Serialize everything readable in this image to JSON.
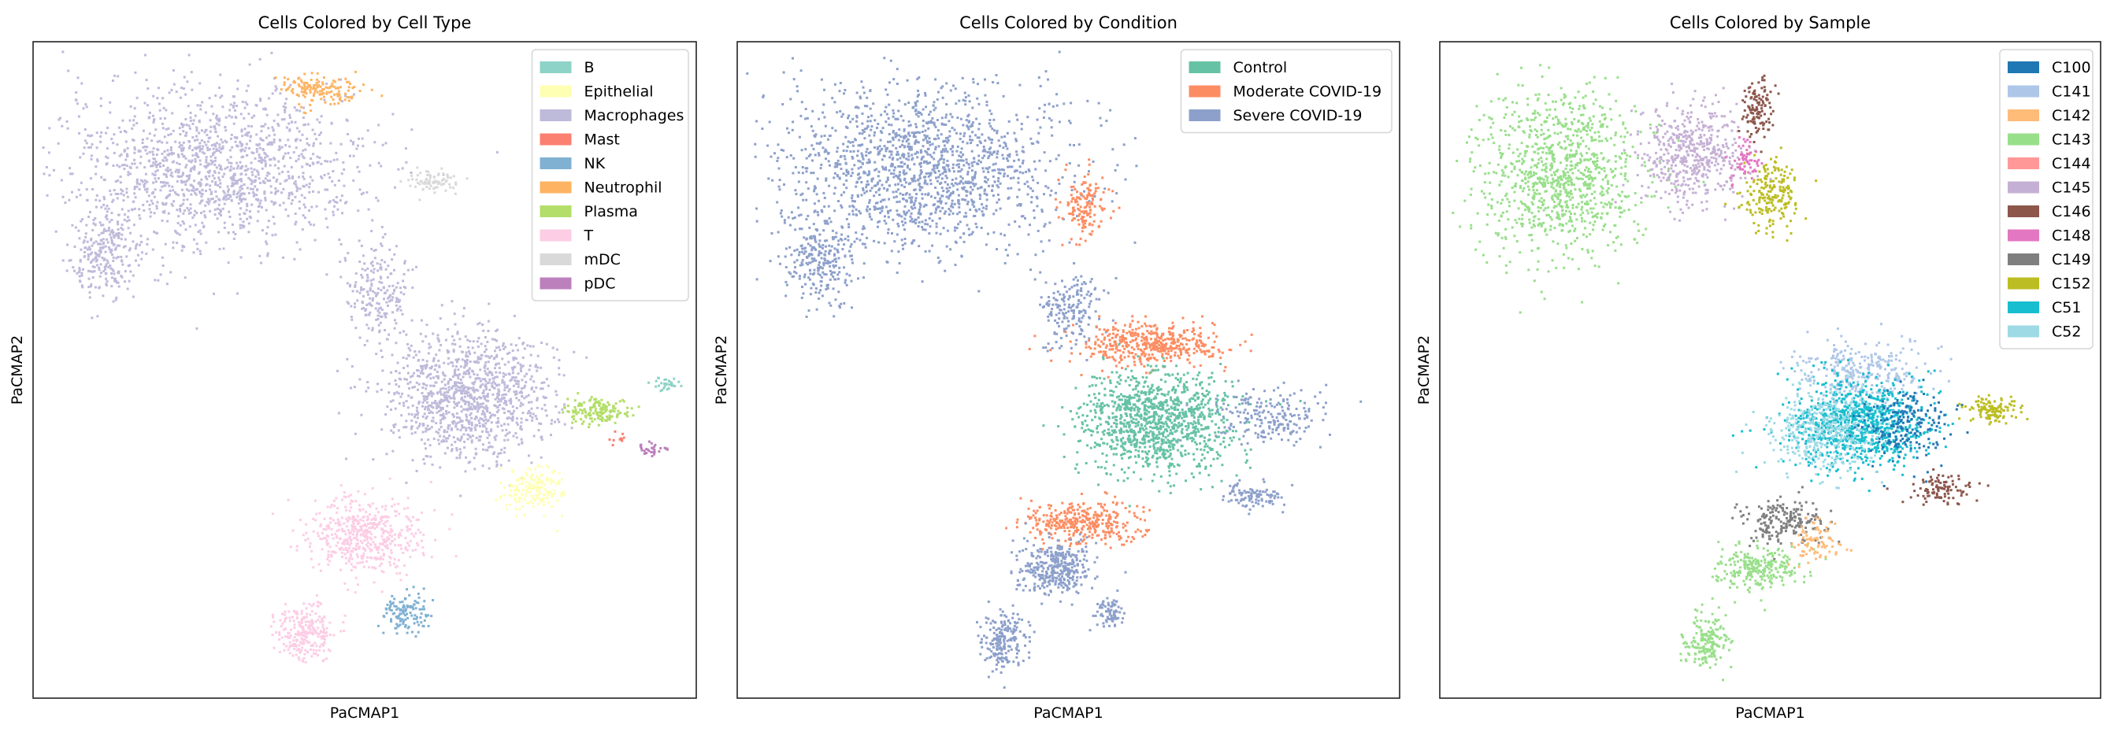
{
  "chart_data": [
    {
      "type": "scatter",
      "title": "Cells Colored by Cell Type",
      "xlabel": "PaCMAP1",
      "ylabel": "PaCMAP2",
      "xlim": [
        0,
        100
      ],
      "ylim": [
        0,
        100
      ],
      "grid": false,
      "legend_placement": "top-right",
      "legend": [
        {
          "label": "B",
          "color": "#8dd3c7"
        },
        {
          "label": "Epithelial",
          "color": "#ffffb3"
        },
        {
          "label": "Macrophages",
          "color": "#bebada"
        },
        {
          "label": "Mast",
          "color": "#fb8072"
        },
        {
          "label": "NK",
          "color": "#80b1d3"
        },
        {
          "label": "Neutrophil",
          "color": "#fdb462"
        },
        {
          "label": "Plasma",
          "color": "#b3de69"
        },
        {
          "label": "T",
          "color": "#fccde5"
        },
        {
          "label": "mDC",
          "color": "#d9d9d9"
        },
        {
          "label": "pDC",
          "color": "#bc80bd"
        }
      ],
      "clusters": [
        {
          "label": "Macrophages",
          "cx": 27,
          "cy": 81,
          "sx": 20,
          "sy": 11,
          "n": 1400
        },
        {
          "label": "Macrophages",
          "cx": 11,
          "cy": 68,
          "sx": 5,
          "sy": 6,
          "n": 250
        },
        {
          "label": "Macrophages",
          "cx": 52,
          "cy": 62,
          "sx": 4,
          "sy": 6,
          "n": 200
        },
        {
          "label": "Macrophages",
          "cx": 65,
          "cy": 46,
          "sx": 11,
          "sy": 9,
          "n": 1100
        },
        {
          "label": "Neutrophil",
          "cx": 43,
          "cy": 93,
          "sx": 5,
          "sy": 2,
          "n": 150
        },
        {
          "label": "mDC",
          "cx": 60,
          "cy": 79,
          "sx": 4,
          "sy": 1.5,
          "n": 80
        },
        {
          "label": "Plasma",
          "cx": 85,
          "cy": 44,
          "sx": 5,
          "sy": 2,
          "n": 150
        },
        {
          "label": "B",
          "cx": 95,
          "cy": 48,
          "sx": 2,
          "sy": 1,
          "n": 30
        },
        {
          "label": "pDC",
          "cx": 93,
          "cy": 38,
          "sx": 2,
          "sy": 1,
          "n": 30
        },
        {
          "label": "Mast",
          "cx": 88,
          "cy": 40,
          "sx": 1,
          "sy": 1,
          "n": 10
        },
        {
          "label": "Epithelial",
          "cx": 75,
          "cy": 32,
          "sx": 4,
          "sy": 3,
          "n": 180
        },
        {
          "label": "T",
          "cx": 50,
          "cy": 25,
          "sx": 8,
          "sy": 5,
          "n": 500
        },
        {
          "label": "T",
          "cx": 41,
          "cy": 10,
          "sx": 4,
          "sy": 4,
          "n": 250
        },
        {
          "label": "NK",
          "cx": 56,
          "cy": 13,
          "sx": 3,
          "sy": 3,
          "n": 120
        }
      ]
    },
    {
      "type": "scatter",
      "title": "Cells Colored by Condition",
      "xlabel": "PaCMAP1",
      "ylabel": "PaCMAP2",
      "xlim": [
        0,
        100
      ],
      "ylim": [
        0,
        100
      ],
      "grid": false,
      "legend_placement": "top-right",
      "legend": [
        {
          "label": "Control",
          "color": "#66c2a5"
        },
        {
          "label": "Moderate COVID-19",
          "color": "#fc8d62"
        },
        {
          "label": "Severe COVID-19",
          "color": "#8da0cb"
        }
      ],
      "clusters": [
        {
          "label": "Severe COVID-19",
          "cx": 28,
          "cy": 81,
          "sx": 19,
          "sy": 11,
          "n": 1500
        },
        {
          "label": "Severe COVID-19",
          "cx": 12,
          "cy": 67,
          "sx": 5,
          "sy": 6,
          "n": 250
        },
        {
          "label": "Moderate COVID-19",
          "cx": 52,
          "cy": 75,
          "sx": 3,
          "sy": 5,
          "n": 150
        },
        {
          "label": "Severe COVID-19",
          "cx": 50,
          "cy": 60,
          "sx": 4,
          "sy": 5,
          "n": 180
        },
        {
          "label": "Moderate COVID-19",
          "cx": 62,
          "cy": 54,
          "sx": 10,
          "sy": 3,
          "n": 450
        },
        {
          "label": "Control",
          "cx": 63,
          "cy": 42,
          "sx": 10,
          "sy": 7,
          "n": 1100
        },
        {
          "label": "Severe COVID-19",
          "cx": 80,
          "cy": 43,
          "sx": 8,
          "sy": 4,
          "n": 200
        },
        {
          "label": "Severe COVID-19",
          "cx": 78,
          "cy": 31,
          "sx": 4,
          "sy": 2,
          "n": 100
        },
        {
          "label": "Moderate COVID-19",
          "cx": 52,
          "cy": 27,
          "sx": 8,
          "sy": 3,
          "n": 350
        },
        {
          "label": "Severe COVID-19",
          "cx": 48,
          "cy": 20,
          "sx": 5,
          "sy": 4,
          "n": 350
        },
        {
          "label": "Severe COVID-19",
          "cx": 40,
          "cy": 9,
          "sx": 3,
          "sy": 4,
          "n": 200
        },
        {
          "label": "Severe COVID-19",
          "cx": 56,
          "cy": 13,
          "sx": 2,
          "sy": 2,
          "n": 80
        }
      ]
    },
    {
      "type": "scatter",
      "title": "Cells Colored by Sample",
      "xlabel": "PaCMAP1",
      "ylabel": "PaCMAP2",
      "xlim": [
        0,
        100
      ],
      "ylim": [
        0,
        100
      ],
      "grid": false,
      "legend_placement": "top-right",
      "legend": [
        {
          "label": "C100",
          "color": "#1f77b4"
        },
        {
          "label": "C141",
          "color": "#aec7e8"
        },
        {
          "label": "C142",
          "color": "#ffbb78"
        },
        {
          "label": "C143",
          "color": "#98df8a"
        },
        {
          "label": "C144",
          "color": "#ff9896"
        },
        {
          "label": "C145",
          "color": "#c5b0d5"
        },
        {
          "label": "C146",
          "color": "#8c564b"
        },
        {
          "label": "C148",
          "color": "#e377c2"
        },
        {
          "label": "C149",
          "color": "#7f7f7f"
        },
        {
          "label": "C152",
          "color": "#bcbd22"
        },
        {
          "label": "C51",
          "color": "#17becf"
        },
        {
          "label": "C52",
          "color": "#9edae5"
        }
      ],
      "clusters": [
        {
          "label": "C143",
          "cx": 18,
          "cy": 80,
          "sx": 11,
          "sy": 11,
          "n": 1000
        },
        {
          "label": "C145",
          "cx": 38,
          "cy": 83,
          "sx": 7,
          "sy": 7,
          "n": 500
        },
        {
          "label": "C146",
          "cx": 48,
          "cy": 90,
          "sx": 2,
          "sy": 4,
          "n": 120
        },
        {
          "label": "C152",
          "cx": 50,
          "cy": 77,
          "sx": 4,
          "sy": 5,
          "n": 200
        },
        {
          "label": "C148",
          "cx": 46,
          "cy": 82,
          "sx": 2,
          "sy": 3,
          "n": 60
        },
        {
          "label": "C141",
          "cx": 64,
          "cy": 50,
          "sx": 9,
          "sy": 4,
          "n": 300
        },
        {
          "label": "C51",
          "cx": 63,
          "cy": 42,
          "sx": 9,
          "sy": 6,
          "n": 900
        },
        {
          "label": "C52",
          "cx": 58,
          "cy": 41,
          "sx": 8,
          "sy": 6,
          "n": 400
        },
        {
          "label": "C100",
          "cx": 70,
          "cy": 42,
          "sx": 6,
          "sy": 5,
          "n": 200
        },
        {
          "label": "C152",
          "cx": 83,
          "cy": 44,
          "sx": 4,
          "sy": 1.5,
          "n": 120
        },
        {
          "label": "C146",
          "cx": 76,
          "cy": 32,
          "sx": 4,
          "sy": 2,
          "n": 100
        },
        {
          "label": "C149",
          "cx": 52,
          "cy": 27,
          "sx": 6,
          "sy": 3,
          "n": 200
        },
        {
          "label": "C143",
          "cx": 48,
          "cy": 20,
          "sx": 6,
          "sy": 3,
          "n": 250
        },
        {
          "label": "C143",
          "cx": 40,
          "cy": 9,
          "sx": 3,
          "sy": 4,
          "n": 180
        },
        {
          "label": "C142",
          "cx": 57,
          "cy": 24,
          "sx": 3,
          "sy": 3,
          "n": 80
        }
      ]
    }
  ]
}
